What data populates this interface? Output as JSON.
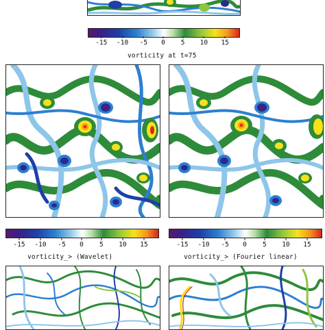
{
  "colorbars": [
    {
      "ticks": [
        "-15",
        "-10",
        "-5",
        "0",
        "5",
        "10",
        "15"
      ],
      "caption": "vorticity at t=75"
    },
    {
      "ticks": [
        "-15",
        "-10",
        "-5",
        "0",
        "5",
        "10",
        "15"
      ],
      "caption": "vorticity_> (Wavelet)"
    },
    {
      "ticks": [
        "-15",
        "-10",
        "-5",
        "0",
        "5",
        "10",
        "15"
      ],
      "caption": "vorticity_> (Fourier linear)"
    }
  ],
  "colors": {
    "strong_negative": "#2b2a8c",
    "negative": "#2d7fd0",
    "weak_negative": "#8ec6ea",
    "zero": "#ffffff",
    "weak_positive": "#2e8b3a",
    "positive": "#8cc63f",
    "strong_positive": "#f6e21a",
    "peak": "#d8241c"
  }
}
